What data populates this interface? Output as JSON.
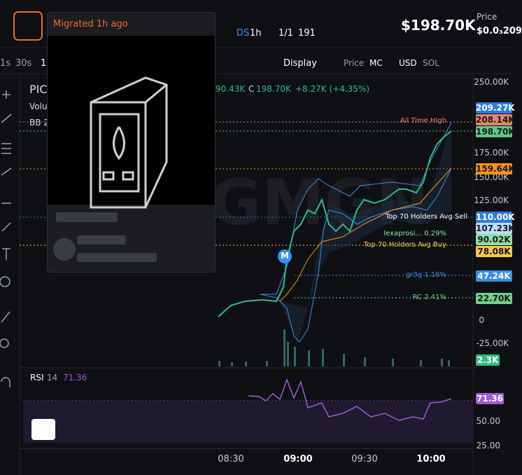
{
  "header": {
    "tooltip": "Migrated 1h ago",
    "ds": "DS",
    "interval": "1h",
    "holders": "1/1",
    "views": "191",
    "market_cap": "$198.70K",
    "price_label": "Price",
    "price": "$0.0₃209"
  },
  "toolbar": {
    "intervals": [
      "1s",
      "30s",
      "1"
    ],
    "display": "Display",
    "price": "Price",
    "mc": "MC",
    "usd": "USD",
    "sol": "SOL"
  },
  "legend": {
    "symbol": "PIC",
    "volume": "Volu",
    "bb": "BB 2",
    "low": "90.43K",
    "close_label": "C",
    "close": "198.70K",
    "change": "+8.27K (+4.35%)"
  },
  "lines": [
    "All Time High",
    "Top 70 Holders Avg Sell",
    "lexaprosi... 0.29%",
    "Top 70 Holders Avg Buy",
    "gr3g 1.16%",
    "RC 2.41%"
  ],
  "price_axis": [
    "250.00K",
    "175.00K",
    "150.00K",
    "125.00K",
    "0",
    "-25.00K"
  ],
  "price_tags": [
    "209.27K",
    "208.14K",
    "198.70K",
    "159.64K",
    "110.00K",
    "107.23K",
    "90.02K",
    "78.08K",
    "47.24K",
    "22.70K",
    "2.3K"
  ],
  "marker": "M",
  "rsi": {
    "label": "RSI",
    "period": "14",
    "value": "71.36",
    "tag": "71.36",
    "axis": [
      "50.00",
      "25.00"
    ]
  },
  "time_axis": [
    "08:30",
    "09:00",
    "09:30",
    "10:00"
  ]
}
